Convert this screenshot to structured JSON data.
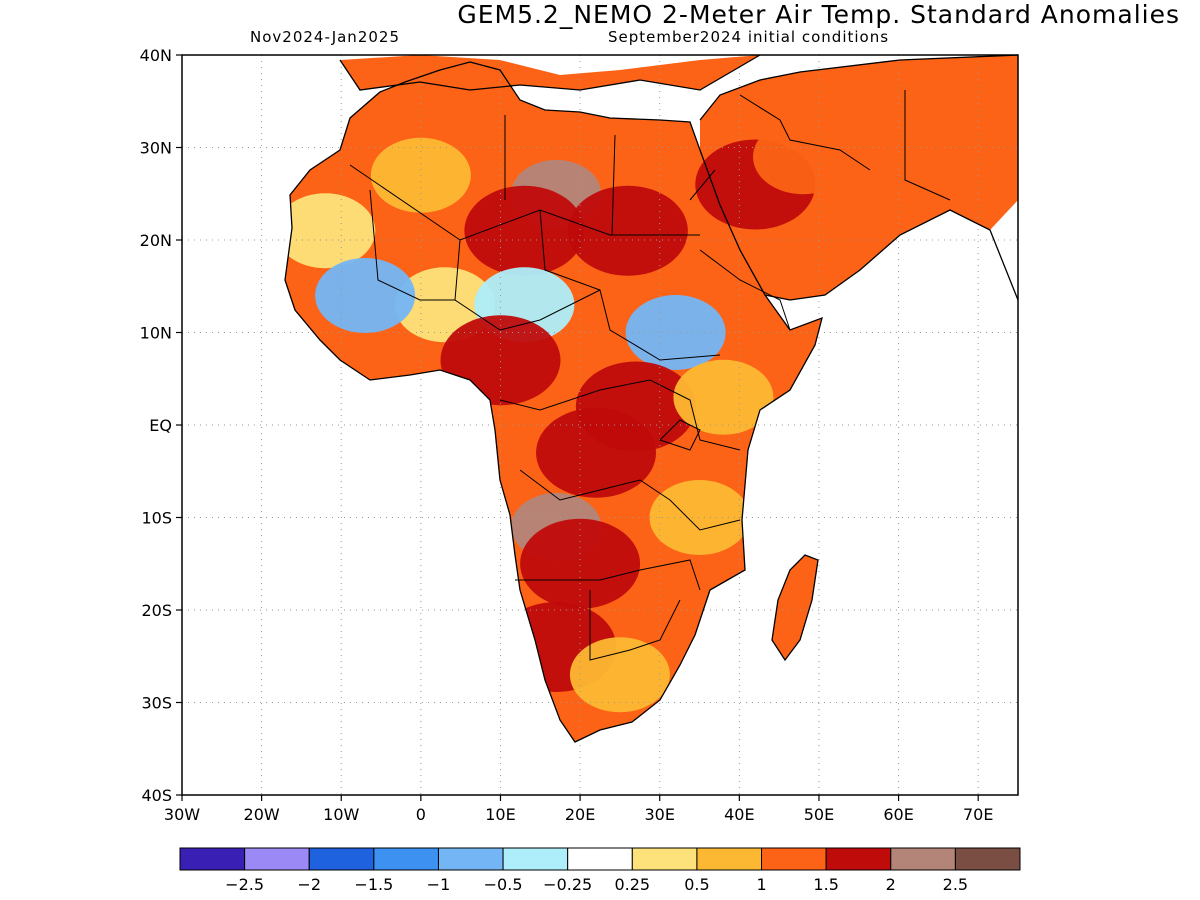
{
  "title": "GEM5.2_NEMO 2-Meter Air Temp. Standard Anomalies",
  "subtitle_left": "Nov2024-Jan2025",
  "subtitle_right": "September2024 initial conditions",
  "map": {
    "lat_ticks": [
      {
        "value": 40,
        "label": "40N"
      },
      {
        "value": 30,
        "label": "30N"
      },
      {
        "value": 20,
        "label": "20N"
      },
      {
        "value": 10,
        "label": "10N"
      },
      {
        "value": 0,
        "label": "EQ"
      },
      {
        "value": -10,
        "label": "10S"
      },
      {
        "value": -20,
        "label": "20S"
      },
      {
        "value": -30,
        "label": "30S"
      },
      {
        "value": -40,
        "label": "40S"
      }
    ],
    "lon_ticks": [
      {
        "value": -30,
        "label": "30W"
      },
      {
        "value": -20,
        "label": "20W"
      },
      {
        "value": -10,
        "label": "10W"
      },
      {
        "value": 0,
        "label": "0"
      },
      {
        "value": 10,
        "label": "10E"
      },
      {
        "value": 20,
        "label": "20E"
      },
      {
        "value": 30,
        "label": "30E"
      },
      {
        "value": 40,
        "label": "40E"
      },
      {
        "value": 50,
        "label": "50E"
      },
      {
        "value": 60,
        "label": "60E"
      },
      {
        "value": 70,
        "label": "70E"
      }
    ],
    "lat_range": [
      -40,
      40
    ],
    "lon_range": [
      -30,
      75
    ]
  },
  "colorbar": {
    "colors": [
      "#3a1fb5",
      "#9b8af5",
      "#1f62e0",
      "#3d91f0",
      "#74b6f5",
      "#aeeefa",
      "#ffffff",
      "#fde17a",
      "#fdb833",
      "#fc6316",
      "#c00b0b",
      "#b38579",
      "#7a4e43"
    ],
    "labels": [
      "-2.5",
      "-2",
      "-1.5",
      "-1",
      "-0.5",
      "-0.25",
      "0.25",
      "0.5",
      "1",
      "1.5",
      "2",
      "2.5"
    ]
  },
  "chart_data": {
    "type": "heatmap",
    "title": "GEM5.2_NEMO 2-Meter Air Temp. Standard Anomalies",
    "lat_range": [
      -40,
      40
    ],
    "lon_range": [
      -30,
      75
    ],
    "levels": [
      -2.5,
      -2,
      -1.5,
      -1,
      -0.5,
      -0.25,
      0.25,
      0.5,
      1,
      1.5,
      2,
      2.5
    ],
    "regions": [
      {
        "lon": 17,
        "lat": 25,
        "value": 2.3
      },
      {
        "lon": 13,
        "lat": 21,
        "value": 1.8
      },
      {
        "lon": 26,
        "lat": 21,
        "value": 1.8
      },
      {
        "lon": 42,
        "lat": 26,
        "value": 1.8
      },
      {
        "lon": 48,
        "lat": 29,
        "value": 1.2
      },
      {
        "lon": 0,
        "lat": 27,
        "value": 0.5
      },
      {
        "lon": -12,
        "lat": 21,
        "value": 0.4
      },
      {
        "lon": 3,
        "lat": 13,
        "value": 0.3
      },
      {
        "lon": 13,
        "lat": 13,
        "value": -0.3
      },
      {
        "lon": 32,
        "lat": 10,
        "value": -0.9
      },
      {
        "lon": -7,
        "lat": 14,
        "value": -0.6
      },
      {
        "lon": 27,
        "lat": 2,
        "value": 1.8
      },
      {
        "lon": 22,
        "lat": -3,
        "value": 1.7
      },
      {
        "lon": 17,
        "lat": -11,
        "value": 2.2
      },
      {
        "lon": 20,
        "lat": -15,
        "value": 1.8
      },
      {
        "lon": 17,
        "lat": -24,
        "value": 1.5
      },
      {
        "lon": 25,
        "lat": -27,
        "value": 0.8
      },
      {
        "lon": 35,
        "lat": -10,
        "value": 0.7
      },
      {
        "lon": 38,
        "lat": 3,
        "value": 0.8
      },
      {
        "lon": 47,
        "lat": -18,
        "value": 1.2
      },
      {
        "lon": 10,
        "lat": 7,
        "value": 1.6
      }
    ]
  }
}
